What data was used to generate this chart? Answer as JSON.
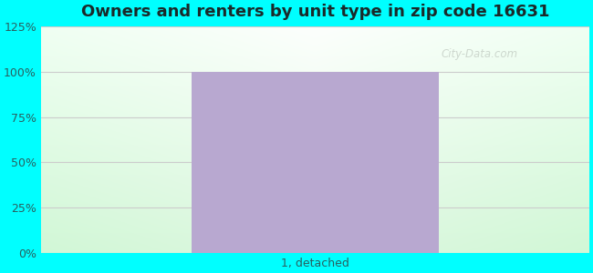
{
  "title": "Owners and renters by unit type in zip code 16631",
  "categories": [
    "1, detached"
  ],
  "values": [
    100
  ],
  "bar_color": "#b8a8d0",
  "bar_width": 0.45,
  "ylim": [
    0,
    125
  ],
  "yticks": [
    0,
    25,
    50,
    75,
    100,
    125
  ],
  "ytick_labels": [
    "0%",
    "25%",
    "50%",
    "75%",
    "100%",
    "125%"
  ],
  "title_fontsize": 13,
  "tick_fontsize": 9,
  "xlabel_fontsize": 9,
  "fig_bg_color": "#00ffff",
  "watermark_text": "City-Data.com",
  "watermark_color": "#b0b8b0",
  "watermark_alpha": 0.55,
  "grid_color": "#cccccc",
  "title_color": "#1a2a2a",
  "tick_color": "#2a6060"
}
